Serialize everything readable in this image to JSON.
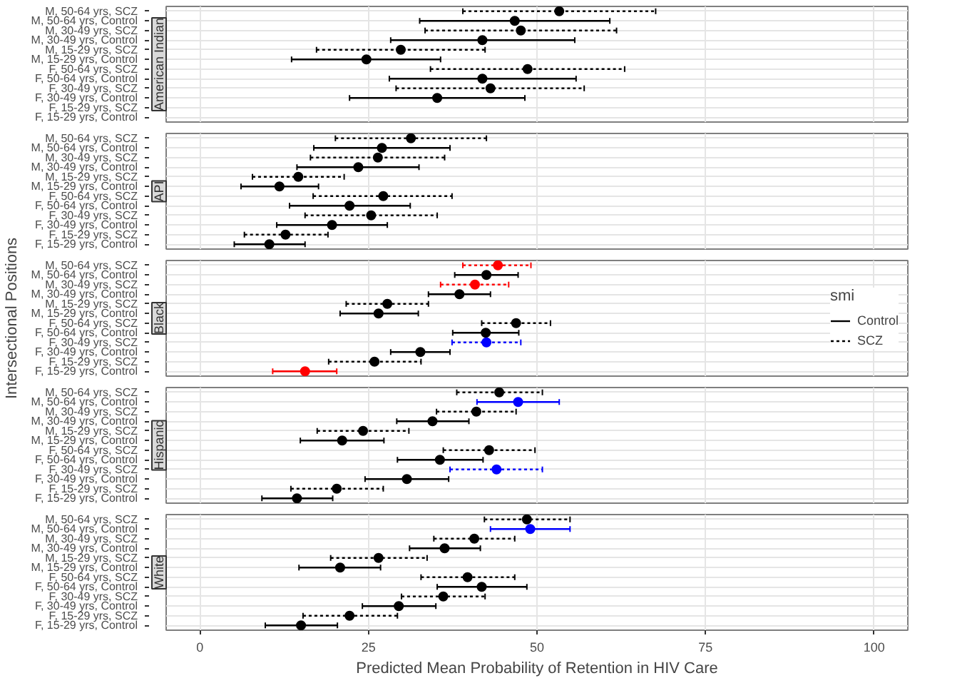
{
  "chart_data": [
    {
      "type": "scatter",
      "orientation": "horizontal",
      "title": "American Indian",
      "categories": [
        "M, 50-64 yrs, SCZ",
        "M, 50-64 yrs, Control",
        "M, 30-49 yrs, SCZ",
        "M, 30-49 yrs, Control",
        "M, 15-29 yrs, SCZ",
        "M, 15-29 yrs, Control",
        "F, 50-64 yrs, SCZ",
        "F, 50-64 yrs, Control",
        "F, 30-49 yrs, SCZ",
        "F, 30-49 yrs, Control",
        "F, 15-29 yrs, SCZ",
        "F, 15-29 yrs, Control"
      ],
      "xlim": [
        -5,
        105
      ],
      "xticks": [
        0,
        25,
        50,
        75,
        100
      ],
      "tick_labels": "y",
      "grid": true,
      "marker": "circle",
      "series": [
        {
          "line_style": "solid",
          "values": [
            null,
            46.7,
            null,
            41.9,
            null,
            24.7,
            null,
            41.9,
            null,
            35.2,
            null,
            null
          ],
          "errors": [
            null,
            [
              32.6,
              60.8
            ],
            null,
            [
              28.3,
              55.6
            ],
            null,
            [
              13.6,
              35.7
            ],
            null,
            [
              28.1,
              55.8
            ],
            null,
            [
              22.2,
              48.2
            ],
            null,
            null
          ],
          "colors": [
            "#000000",
            "#000000",
            "#000000",
            "#000000",
            "#000000",
            "#000000",
            "#000000",
            "#000000",
            "#000000",
            "#000000",
            "#000000",
            "#000000"
          ]
        },
        {
          "line_style": "dashed",
          "values": [
            53.3,
            null,
            47.6,
            null,
            29.8,
            null,
            48.6,
            null,
            43.1,
            null,
            null,
            null
          ],
          "errors": [
            [
              39.0,
              67.6
            ],
            null,
            [
              33.4,
              61.8
            ],
            null,
            [
              17.3,
              42.3
            ],
            null,
            [
              34.2,
              63.0
            ],
            null,
            [
              29.1,
              57.0
            ],
            null,
            null,
            null
          ],
          "colors": [
            "#000000",
            "#000000",
            "#000000",
            "#000000",
            "#000000",
            "#000000",
            "#000000",
            "#000000",
            "#000000",
            "#000000",
            "#000000",
            "#000000"
          ]
        }
      ]
    },
    {
      "type": "scatter",
      "orientation": "horizontal",
      "title": "API",
      "categories": [
        "M, 50-64 yrs, SCZ",
        "M, 50-64 yrs, Control",
        "M, 30-49 yrs, SCZ",
        "M, 30-49 yrs, Control",
        "M, 15-29 yrs, SCZ",
        "M, 15-29 yrs, Control",
        "F, 50-64 yrs, SCZ",
        "F, 50-64 yrs, Control",
        "F, 30-49 yrs, SCZ",
        "F, 30-49 yrs, Control",
        "F, 15-29 yrs, SCZ",
        "F, 15-29 yrs, Control"
      ],
      "xlim": [
        -5,
        105
      ],
      "xticks": [
        0,
        25,
        50,
        75,
        100
      ],
      "tick_labels": "y",
      "grid": true,
      "marker": "circle",
      "series": [
        {
          "line_style": "solid",
          "values": [
            null,
            27.0,
            null,
            23.5,
            null,
            11.8,
            null,
            22.2,
            null,
            19.6,
            null,
            10.3
          ],
          "errors": [
            null,
            [
              16.9,
              37.1
            ],
            null,
            [
              14.4,
              32.5
            ],
            null,
            [
              6.1,
              17.6
            ],
            null,
            [
              13.3,
              31.2
            ],
            null,
            [
              11.4,
              27.8
            ],
            null,
            [
              5.1,
              15.6
            ]
          ],
          "colors": [
            "#000000",
            "#000000",
            "#000000",
            "#000000",
            "#000000",
            "#000000",
            "#000000",
            "#000000",
            "#000000",
            "#000000",
            "#000000",
            "#000000"
          ]
        },
        {
          "line_style": "dashed",
          "values": [
            31.3,
            null,
            26.4,
            null,
            14.6,
            null,
            27.2,
            null,
            25.4,
            null,
            12.7,
            null
          ],
          "errors": [
            [
              20.1,
              42.5
            ],
            null,
            [
              16.4,
              36.3
            ],
            null,
            [
              7.8,
              21.4
            ],
            null,
            [
              16.8,
              37.4
            ],
            null,
            [
              15.6,
              35.2
            ],
            null,
            [
              6.6,
              19.0
            ],
            null
          ],
          "colors": [
            "#000000",
            "#000000",
            "#000000",
            "#000000",
            "#000000",
            "#000000",
            "#000000",
            "#000000",
            "#000000",
            "#000000",
            "#000000",
            "#000000"
          ]
        }
      ]
    },
    {
      "type": "scatter",
      "orientation": "horizontal",
      "title": "Black",
      "ylabel": "Intersectional Positions",
      "legend": "right",
      "legend_title": "smi",
      "categories": [
        "M, 50-64 yrs, SCZ",
        "M, 50-64 yrs, Control",
        "M, 30-49 yrs, SCZ",
        "M, 30-49 yrs, Control",
        "M, 15-29 yrs, SCZ",
        "M, 15-29 yrs, Control",
        "F, 50-64 yrs, SCZ",
        "F, 50-64 yrs, Control",
        "F, 30-49 yrs, SCZ",
        "F, 30-49 yrs, Control",
        "F, 15-29 yrs, SCZ",
        "F, 15-29 yrs, Control"
      ],
      "xlim": [
        -5,
        105
      ],
      "xticks": [
        0,
        25,
        50,
        75,
        100
      ],
      "tick_labels": "y",
      "grid": true,
      "marker": "circle",
      "series": [
        {
          "name": "Control",
          "line_style": "solid",
          "values": [
            null,
            42.5,
            null,
            38.5,
            null,
            26.5,
            null,
            42.4,
            null,
            32.7,
            null,
            15.6
          ],
          "errors": [
            null,
            [
              37.8,
              47.2
            ],
            null,
            [
              33.9,
              43.1
            ],
            null,
            [
              20.8,
              32.4
            ],
            null,
            [
              37.5,
              47.3
            ],
            null,
            [
              28.3,
              37.1
            ],
            null,
            [
              10.8,
              20.3
            ]
          ],
          "colors": [
            "#000000",
            "#000000",
            "#000000",
            "#000000",
            "#000000",
            "#000000",
            "#000000",
            "#000000",
            "#000000",
            "#000000",
            "#000000",
            "#ff0000"
          ]
        },
        {
          "name": "SCZ",
          "line_style": "dashed",
          "values": [
            44.2,
            null,
            40.8,
            null,
            27.8,
            null,
            46.9,
            null,
            42.5,
            null,
            25.9,
            null
          ],
          "errors": [
            [
              39.0,
              49.1
            ],
            null,
            [
              35.7,
              45.8
            ],
            null,
            [
              21.7,
              33.9
            ],
            null,
            [
              41.8,
              52.0
            ],
            null,
            [
              37.4,
              47.6
            ],
            null,
            [
              19.1,
              32.8
            ],
            null
          ],
          "colors": [
            "#ff0000",
            "#000000",
            "#ff0000",
            "#000000",
            "#000000",
            "#000000",
            "#000000",
            "#000000",
            "#0000ff",
            "#000000",
            "#000000",
            "#000000"
          ]
        }
      ]
    },
    {
      "type": "scatter",
      "orientation": "horizontal",
      "title": "Hispanic",
      "categories": [
        "M, 50-64 yrs, SCZ",
        "M, 50-64 yrs, Control",
        "M, 30-49 yrs, SCZ",
        "M, 30-49 yrs, Control",
        "M, 15-29 yrs, SCZ",
        "M, 15-29 yrs, Control",
        "F, 50-64 yrs, SCZ",
        "F, 50-64 yrs, Control",
        "F, 30-49 yrs, SCZ",
        "F, 30-49 yrs, Control",
        "F, 15-29 yrs, SCZ",
        "F, 15-29 yrs, Control"
      ],
      "xlim": [
        -5,
        105
      ],
      "xticks": [
        0,
        25,
        50,
        75,
        100
      ],
      "tick_labels": "y",
      "grid": true,
      "marker": "circle",
      "series": [
        {
          "line_style": "solid",
          "values": [
            null,
            47.2,
            null,
            34.5,
            null,
            21.1,
            null,
            35.6,
            null,
            30.7,
            null,
            14.4
          ],
          "errors": [
            null,
            [
              41.1,
              53.3
            ],
            null,
            [
              29.2,
              39.9
            ],
            null,
            [
              14.9,
              27.3
            ],
            null,
            [
              29.3,
              42.0
            ],
            null,
            [
              24.5,
              36.9
            ],
            null,
            [
              9.2,
              19.7
            ]
          ],
          "colors": [
            "#000000",
            "#0000ff",
            "#000000",
            "#000000",
            "#000000",
            "#000000",
            "#000000",
            "#000000",
            "#000000",
            "#000000",
            "#000000",
            "#000000"
          ]
        },
        {
          "line_style": "dashed",
          "values": [
            44.4,
            null,
            41.0,
            null,
            24.2,
            null,
            42.9,
            null,
            44.0,
            null,
            20.3,
            null
          ],
          "errors": [
            [
              38.1,
              50.8
            ],
            null,
            [
              35.1,
              46.9
            ],
            null,
            [
              17.4,
              31.0
            ],
            null,
            [
              36.1,
              49.7
            ],
            null,
            [
              37.1,
              50.8
            ],
            null,
            [
              13.5,
              27.2
            ],
            null
          ],
          "colors": [
            "#000000",
            "#000000",
            "#000000",
            "#000000",
            "#000000",
            "#000000",
            "#000000",
            "#000000",
            "#0000ff",
            "#000000",
            "#000000",
            "#000000"
          ]
        }
      ]
    },
    {
      "type": "scatter",
      "orientation": "horizontal",
      "title": "White",
      "xlabel": "Predicted Mean Probability of Retention in HIV Care",
      "categories": [
        "M, 50-64 yrs, SCZ",
        "M, 50-64 yrs, Control",
        "M, 30-49 yrs, SCZ",
        "M, 30-49 yrs, Control",
        "M, 15-29 yrs, SCZ",
        "M, 15-29 yrs, Control",
        "F, 50-64 yrs, SCZ",
        "F, 50-64 yrs, Control",
        "F, 30-49 yrs, SCZ",
        "F, 30-49 yrs, Control",
        "F, 15-29 yrs, SCZ",
        "F, 15-29 yrs, Control"
      ],
      "xlim": [
        -5,
        105
      ],
      "xticks": [
        0,
        25,
        50,
        75,
        100
      ],
      "grid": true,
      "marker": "circle",
      "series": [
        {
          "line_style": "solid",
          "values": [
            null,
            49.0,
            null,
            36.3,
            null,
            20.8,
            null,
            41.8,
            null,
            29.5,
            null,
            15.0
          ],
          "errors": [
            null,
            [
              43.1,
              54.9
            ],
            null,
            [
              31.1,
              41.6
            ],
            null,
            [
              14.7,
              26.8
            ],
            null,
            [
              35.2,
              48.5
            ],
            null,
            [
              24.1,
              35.0
            ],
            null,
            [
              9.7,
              20.4
            ]
          ],
          "colors": [
            "#000000",
            "#0000ff",
            "#000000",
            "#000000",
            "#000000",
            "#000000",
            "#000000",
            "#000000",
            "#000000",
            "#000000",
            "#000000",
            "#000000"
          ]
        },
        {
          "line_style": "dashed",
          "values": [
            48.5,
            null,
            40.7,
            null,
            26.5,
            null,
            39.7,
            null,
            36.1,
            null,
            22.2,
            null
          ],
          "errors": [
            [
              42.2,
              54.9
            ],
            null,
            [
              34.7,
              46.7
            ],
            null,
            [
              19.4,
              33.7
            ],
            null,
            [
              32.8,
              46.7
            ],
            null,
            [
              29.9,
              42.3
            ],
            null,
            [
              15.3,
              29.3
            ],
            null
          ],
          "colors": [
            "#000000",
            "#000000",
            "#000000",
            "#000000",
            "#000000",
            "#000000",
            "#000000",
            "#000000",
            "#000000",
            "#000000",
            "#000000",
            "#000000"
          ]
        }
      ]
    }
  ]
}
